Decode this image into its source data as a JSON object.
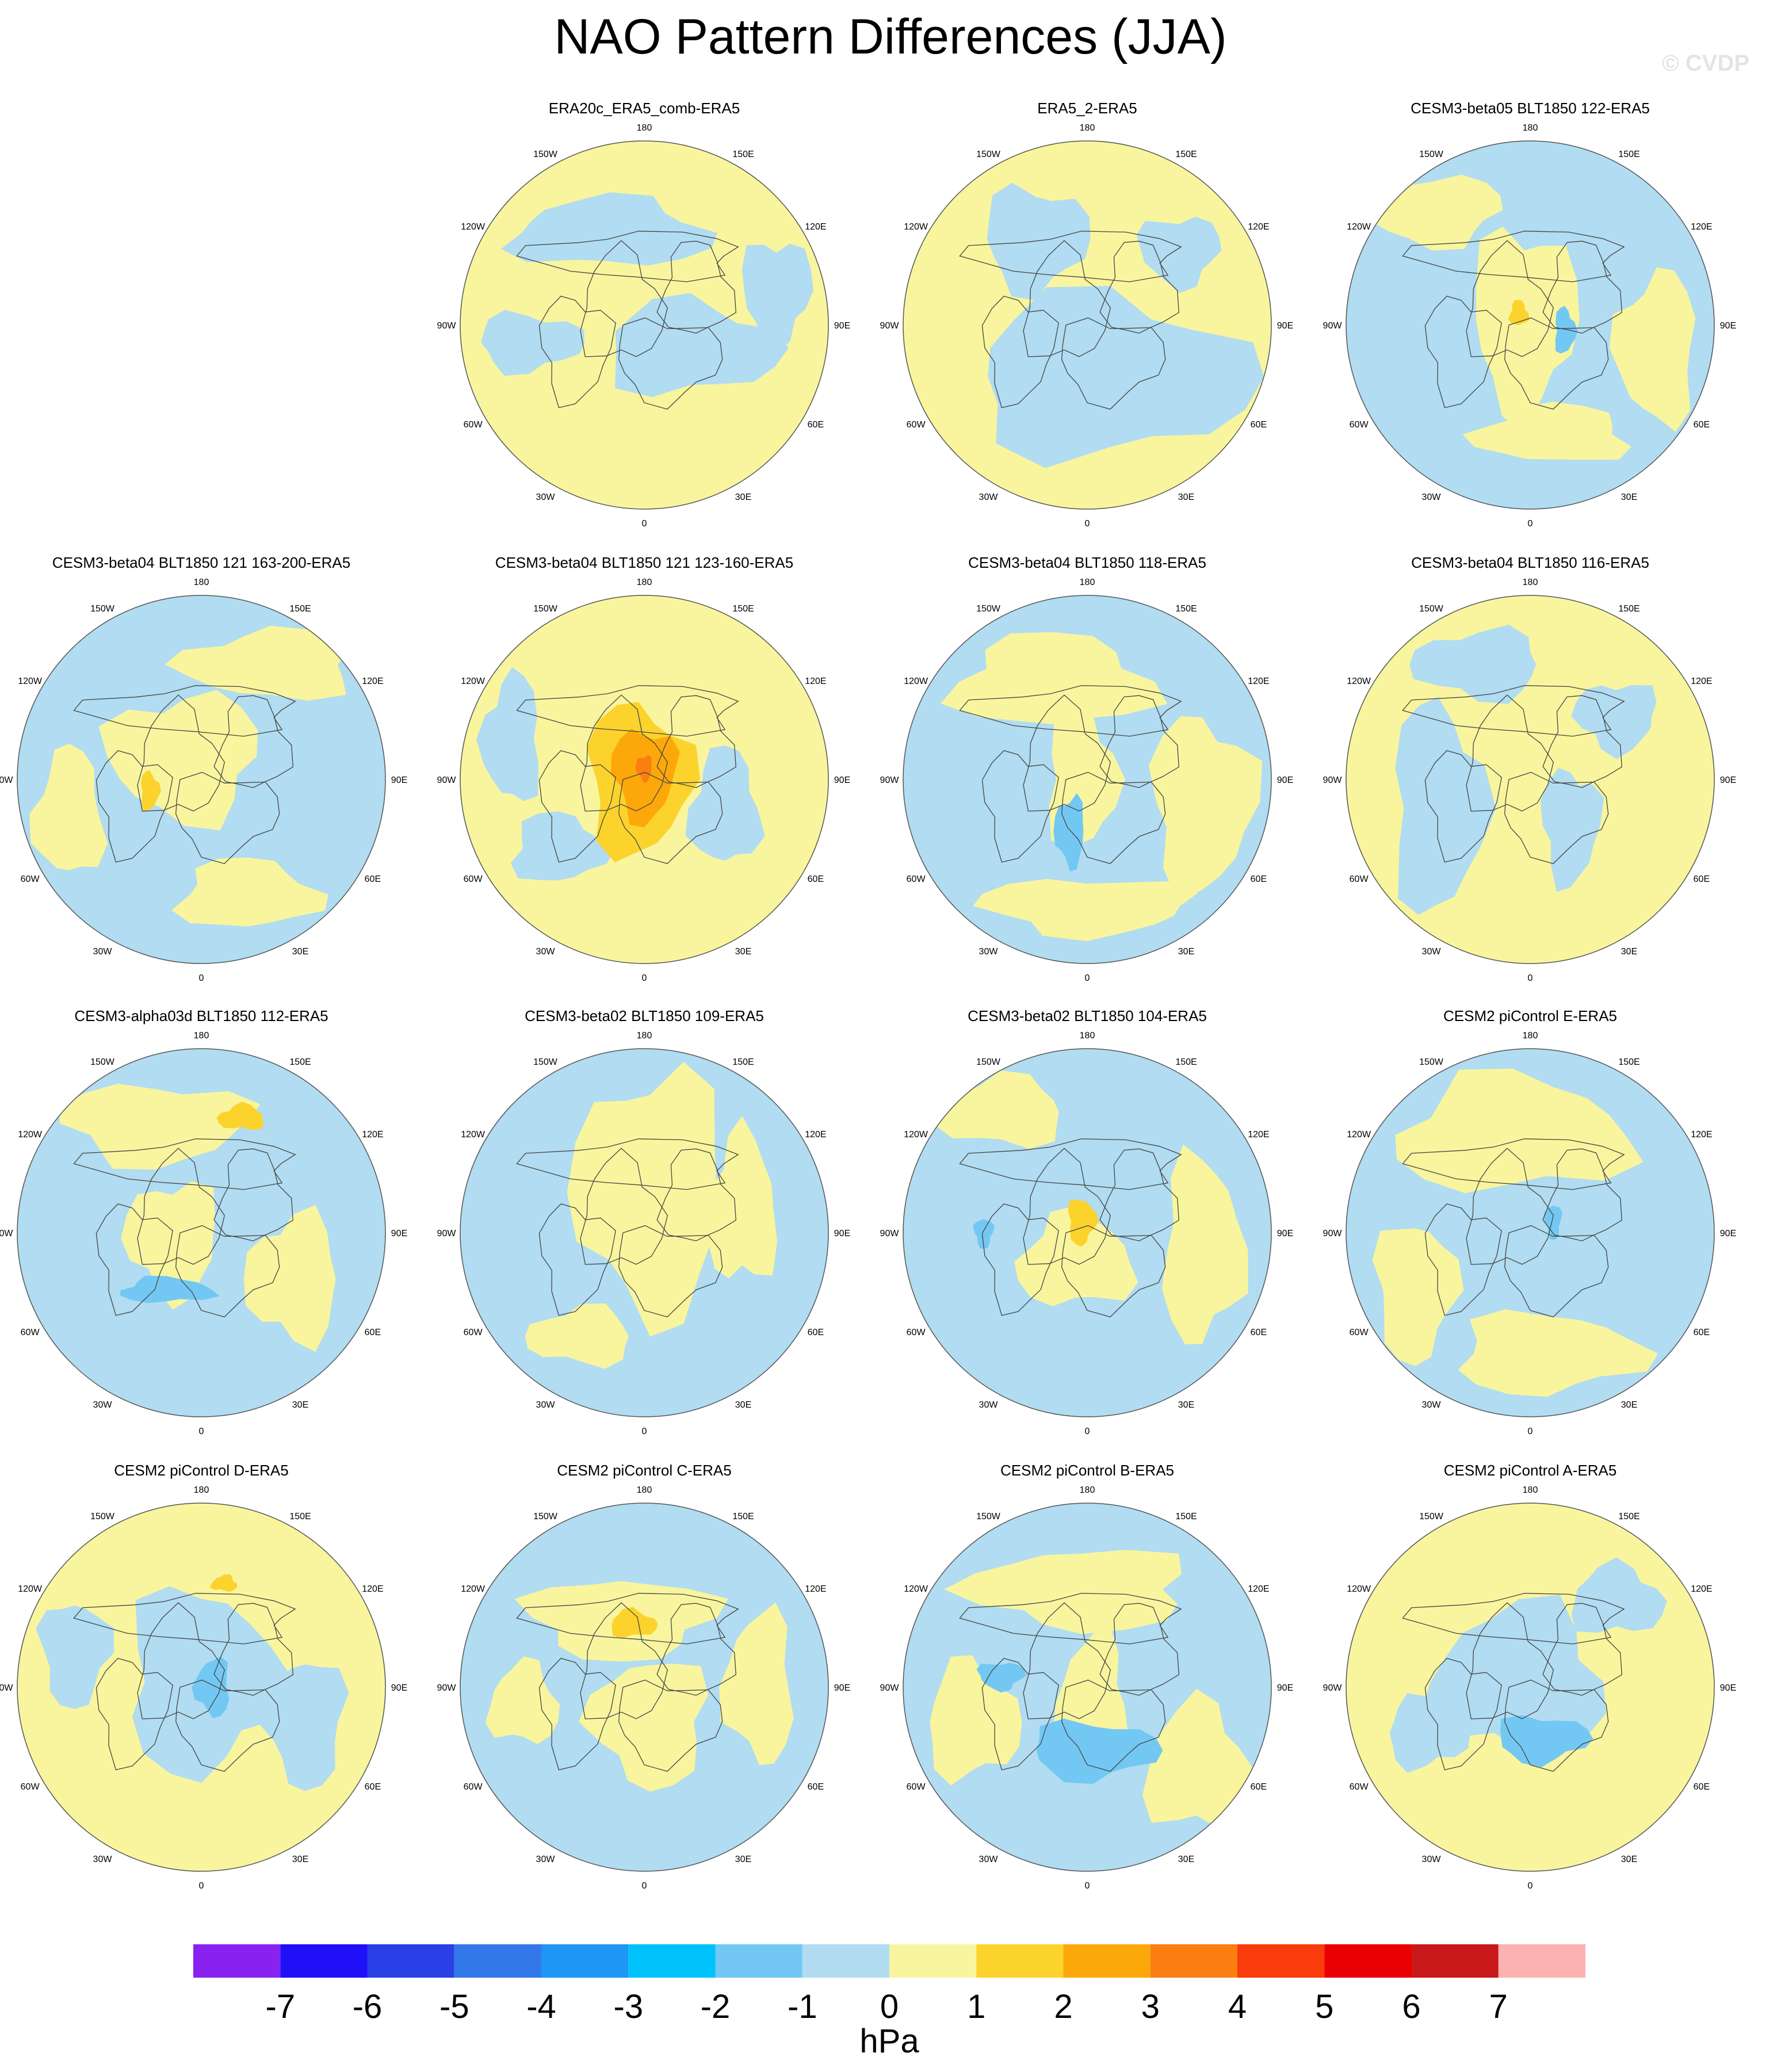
{
  "figure": {
    "title": "NAO Pattern Differences (JJA)",
    "watermark": "© CVDP"
  },
  "longitude_labels": [
    "180",
    "150E",
    "120E",
    "90E",
    "60E",
    "30E",
    "0",
    "30W",
    "60W",
    "90W",
    "120W",
    "150W"
  ],
  "panels": [
    {
      "title": "ERA20c_ERA5_comb-ERA5",
      "base": "yellow",
      "features": [
        "light-blue Arctic/Siberia band",
        "light-blue N Atlantic/Europe",
        "light-blue NE Pacific"
      ]
    },
    {
      "title": "ERA5_2-ERA5",
      "base": "yellow",
      "features": [
        "broad light-blue Eurasia/Atlantic sector",
        "light-blue Canada"
      ]
    },
    {
      "title": "CESM3-beta05 BLT1850 122-ERA5",
      "base": "light-blue",
      "features": [
        "yellow Greenland/Arctic",
        "1-2 hPa over Greenland",
        "-1 to -2 hPa over Scandinavia"
      ]
    },
    {
      "title": "CESM3-beta04 BLT1850 121 163-200-ERA5",
      "base": "light-blue",
      "features": [
        "yellow Arctic",
        "1-2 hPa over Canadian Archipelago"
      ]
    },
    {
      "title": "CESM3-beta04 BLT1850 121 123-160-ERA5",
      "base": "yellow",
      "features": [
        "positive 1-4 hPa over Greenland/Arctic",
        "light-blue N Pacific"
      ]
    },
    {
      "title": "CESM3-beta04 BLT1850 118-ERA5",
      "base": "light-blue",
      "features": [
        "yellow N Pacific/Arctic",
        "-1 to -2 hPa near Iceland"
      ]
    },
    {
      "title": "CESM3-beta04 BLT1850 116-ERA5",
      "base": "yellow",
      "features": [
        "light-blue N Atlantic",
        "light-blue Siberia"
      ]
    },
    {
      "title": "CESM3-alpha03d BLT1850 112-ERA5",
      "base": "light-blue",
      "features": [
        "1-2 hPa over NE Asia",
        "-1 to -2 hPa S of Greenland"
      ]
    },
    {
      "title": "CESM3-beta02 BLT1850 109-ERA5",
      "base": "light-blue",
      "features": [
        "yellow Arctic/Atlantic band"
      ]
    },
    {
      "title": "CESM3-beta02 BLT1850 104-ERA5",
      "base": "light-blue",
      "features": [
        "1-2 hPa over Greenland",
        "yellow Atlantic"
      ]
    },
    {
      "title": "CESM2 piControl E-ERA5",
      "base": "light-blue",
      "features": [
        "yellow Pacific/Asia",
        "-1 to -2 hPa over Barents Sea"
      ]
    },
    {
      "title": "CESM2 piControl D-ERA5",
      "base": "yellow",
      "features": [
        "-1 to -2 hPa Barents/Kara",
        "1-2 hPa over NE Asia"
      ]
    },
    {
      "title": "CESM2 piControl C-ERA5",
      "base": "light-blue",
      "features": [
        "1-2 hPa over E Siberia",
        "yellow Atlantic"
      ]
    },
    {
      "title": "CESM2 piControl B-ERA5",
      "base": "light-blue",
      "features": [
        "-1 to -2 hPa N Atlantic",
        "-1 to -2 hPa Canadian Archipelago"
      ]
    },
    {
      "title": "CESM2 piControl A-ERA5",
      "base": "yellow",
      "features": [
        "-1 to -2 hPa N Europe",
        "light-blue Arctic"
      ]
    }
  ],
  "colorbar": {
    "units": "hPa",
    "tick_labels": [
      "-7",
      "-6",
      "-5",
      "-4",
      "-3",
      "-2",
      "-1",
      "0",
      "1",
      "2",
      "3",
      "4",
      "5",
      "6",
      "7"
    ],
    "colors": [
      "#8a22ef",
      "#1f10f8",
      "#2840e6",
      "#3278ea",
      "#1d96f6",
      "#00c2fa",
      "#73c8f3",
      "#b1dcf1",
      "#f8f59e",
      "#fbd32c",
      "#fda80a",
      "#fb7e10",
      "#fa3b0c",
      "#ea0000",
      "#c9181a",
      "#fdb2b2"
    ]
  },
  "fill_colors": {
    "neg1": "#b1dcf1",
    "neg2": "#73c8f3",
    "pos1": "#f8f59e",
    "pos2": "#fbd32c",
    "pos3": "#fda80a",
    "pos4": "#fb7e10",
    "coast": "#444444"
  }
}
